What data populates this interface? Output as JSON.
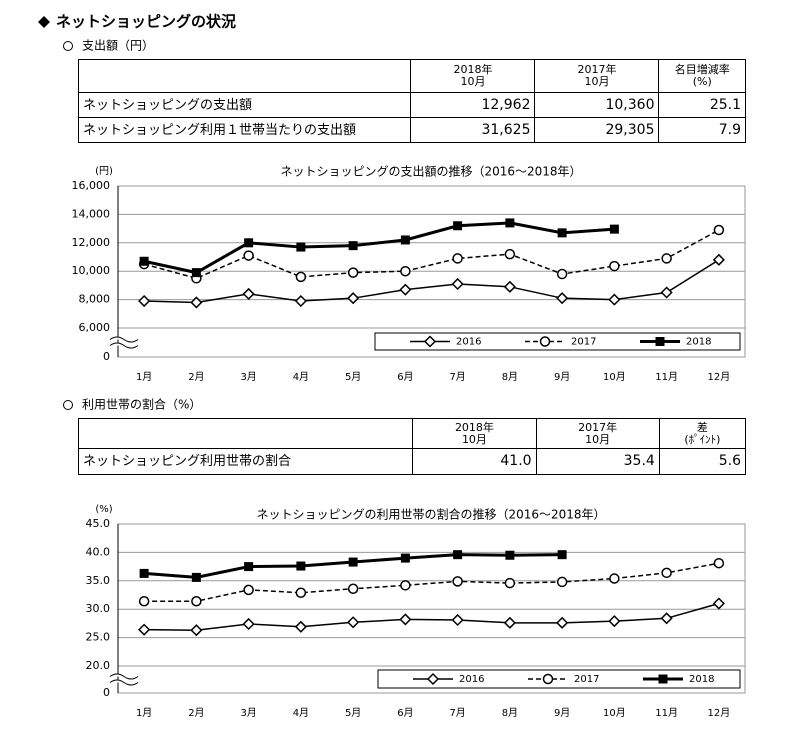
{
  "header": {
    "title": "ネットショッピングの状況"
  },
  "tables": [
    {
      "caption": "支出額（円）",
      "columns": [
        [
          "2018年",
          "10月"
        ],
        [
          "2017年",
          "10月"
        ],
        [
          "名目増減率",
          "(%)"
        ]
      ],
      "rows": [
        [
          "ネットショッピングの支出額",
          "12,962",
          "10,360",
          "25.1"
        ],
        [
          "ネットショッピング利用１世帯当たりの支出額",
          "31,625",
          "29,305",
          "7.9"
        ]
      ]
    },
    {
      "caption": "利用世帯の割合（%）",
      "columns": [
        [
          "2018年",
          "10月"
        ],
        [
          "2017年",
          "10月"
        ],
        [
          "差",
          "(ﾎﾟｲﾝﾄ)"
        ]
      ],
      "rows": [
        [
          "ネットショッピング利用世帯の割合",
          "41.0",
          "35.4",
          "5.6"
        ]
      ]
    }
  ],
  "chart_data": [
    {
      "type": "line",
      "title": "ネットショッピングの支出額の推移（2016～2018年）",
      "y_unit": "(円)",
      "categories": [
        "1月",
        "2月",
        "3月",
        "4月",
        "5月",
        "6月",
        "7月",
        "8月",
        "9月",
        "10月",
        "11月",
        "12月"
      ],
      "ylim": [
        6000,
        16000
      ],
      "yticks": [
        0,
        {
          "value": 6000,
          "label": "6,000"
        },
        {
          "value": 8000,
          "label": "8,000"
        },
        {
          "value": 10000,
          "label": "10,000"
        },
        {
          "value": 12000,
          "label": "12,000"
        },
        {
          "value": 14000,
          "label": "14,000"
        },
        {
          "value": 16000,
          "label": "16,000"
        }
      ],
      "grid": true,
      "legend": "lower right",
      "series": [
        {
          "name": "2016",
          "color": "#000000",
          "marker": "diamond",
          "dashed": false,
          "values": [
            7900,
            7800,
            8400,
            7900,
            8100,
            8700,
            9100,
            8900,
            8100,
            8000,
            8500,
            10800
          ]
        },
        {
          "name": "2017",
          "color": "#000000",
          "marker": "circle",
          "dashed": true,
          "values": [
            10500,
            9500,
            11100,
            9600,
            9900,
            10000,
            10900,
            11200,
            9800,
            10360,
            10900,
            12900
          ]
        },
        {
          "name": "2018",
          "color": "#000000",
          "marker": "square",
          "dashed": false,
          "values": [
            10700,
            9900,
            12000,
            11700,
            11800,
            12200,
            13200,
            13400,
            12700,
            12962,
            null,
            null
          ]
        }
      ]
    },
    {
      "type": "line",
      "title": "ネットショッピングの利用世帯の割合の推移（2016～2018年）",
      "y_unit": "(%)",
      "categories": [
        "1月",
        "2月",
        "3月",
        "4月",
        "5月",
        "6月",
        "7月",
        "8月",
        "9月",
        "10月",
        "11月",
        "12月"
      ],
      "ylim": [
        20,
        45
      ],
      "yticks": [
        0,
        {
          "value": 20,
          "label": "20.0"
        },
        {
          "value": 25,
          "label": "25.0"
        },
        {
          "value": 30,
          "label": "30.0"
        },
        {
          "value": 35,
          "label": "35.0"
        },
        {
          "value": 40,
          "label": "40.0"
        },
        {
          "value": 45,
          "label": "45.0"
        }
      ],
      "grid": true,
      "legend": "lower right",
      "series": [
        {
          "name": "2016",
          "color": "#000000",
          "marker": "diamond",
          "dashed": false,
          "values": [
            26.4,
            26.3,
            27.4,
            26.9,
            27.7,
            28.2,
            28.1,
            27.6,
            27.6,
            27.9,
            28.4,
            31.0
          ]
        },
        {
          "name": "2017",
          "color": "#000000",
          "marker": "circle",
          "dashed": true,
          "values": [
            31.4,
            31.4,
            33.4,
            32.9,
            33.6,
            34.2,
            34.9,
            34.6,
            34.8,
            35.4,
            36.4,
            38.1
          ]
        },
        {
          "name": "2018",
          "color": "#000000",
          "marker": "square",
          "dashed": false,
          "values": [
            36.3,
            35.6,
            37.5,
            37.6,
            38.3,
            39.0,
            39.6,
            39.5,
            39.6,
            null,
            null,
            null
          ]
        }
      ]
    }
  ]
}
